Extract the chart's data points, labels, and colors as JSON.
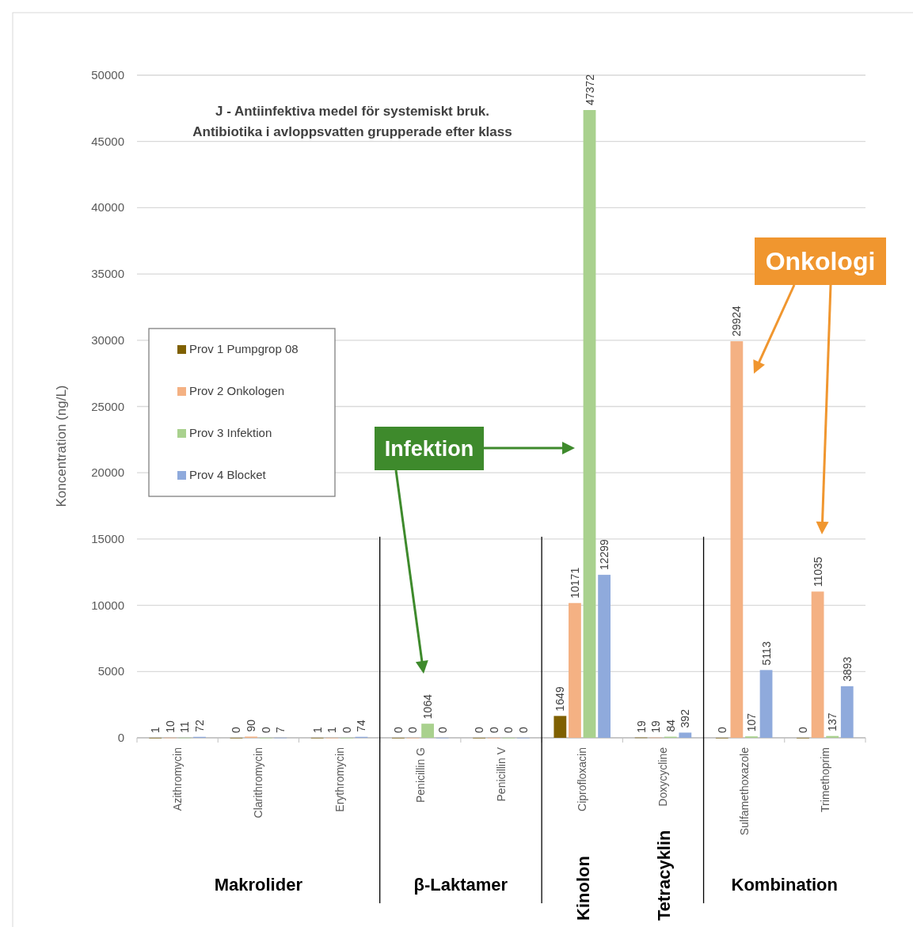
{
  "chart_data": {
    "type": "bar",
    "title": "J - Antiinfektiva medel för systemiskt bruk.",
    "subtitle": "Antibiotika i avloppsvatten grupperade efter klass",
    "ylabel": "Koncentration (ng/L)",
    "categories": [
      "Azithromycin",
      "Clarithromycin",
      "Erythromycin",
      "Penicillin G",
      "Penicillin V",
      "Ciprofloxacin",
      "Doxycycline",
      "Sulfamethoxazole",
      "Trimethoprim"
    ],
    "series": [
      {
        "name": "Prov 1 Pumpgrop 08",
        "color": "#7f6000",
        "values": [
          1,
          0,
          1,
          0,
          0,
          1649,
          19,
          0,
          0
        ]
      },
      {
        "name": "Prov 2 Onkologen",
        "color": "#f4b183",
        "values": [
          10,
          90,
          1,
          0,
          0,
          10171,
          19,
          29924,
          11035
        ]
      },
      {
        "name": "Prov 3 Infektion",
        "color": "#a9d18e",
        "values": [
          11,
          0,
          0,
          1064,
          0,
          47372,
          84,
          107,
          137
        ]
      },
      {
        "name": "Prov 4 Blocket",
        "color": "#8faadc",
        "values": [
          72,
          7,
          74,
          0,
          0,
          12299,
          392,
          5113,
          3893
        ]
      }
    ],
    "ylim": [
      0,
      50000
    ],
    "yticks": [
      0,
      5000,
      10000,
      15000,
      20000,
      25000,
      30000,
      35000,
      40000,
      45000,
      50000
    ],
    "grid": "y",
    "legend": "left",
    "data_labels": true,
    "annotations": [
      "Makrolider",
      "β-Laktamer",
      "Kinolon",
      "Tetracyklin",
      "Kombination",
      "Infektion",
      "Onkologi"
    ]
  }
}
